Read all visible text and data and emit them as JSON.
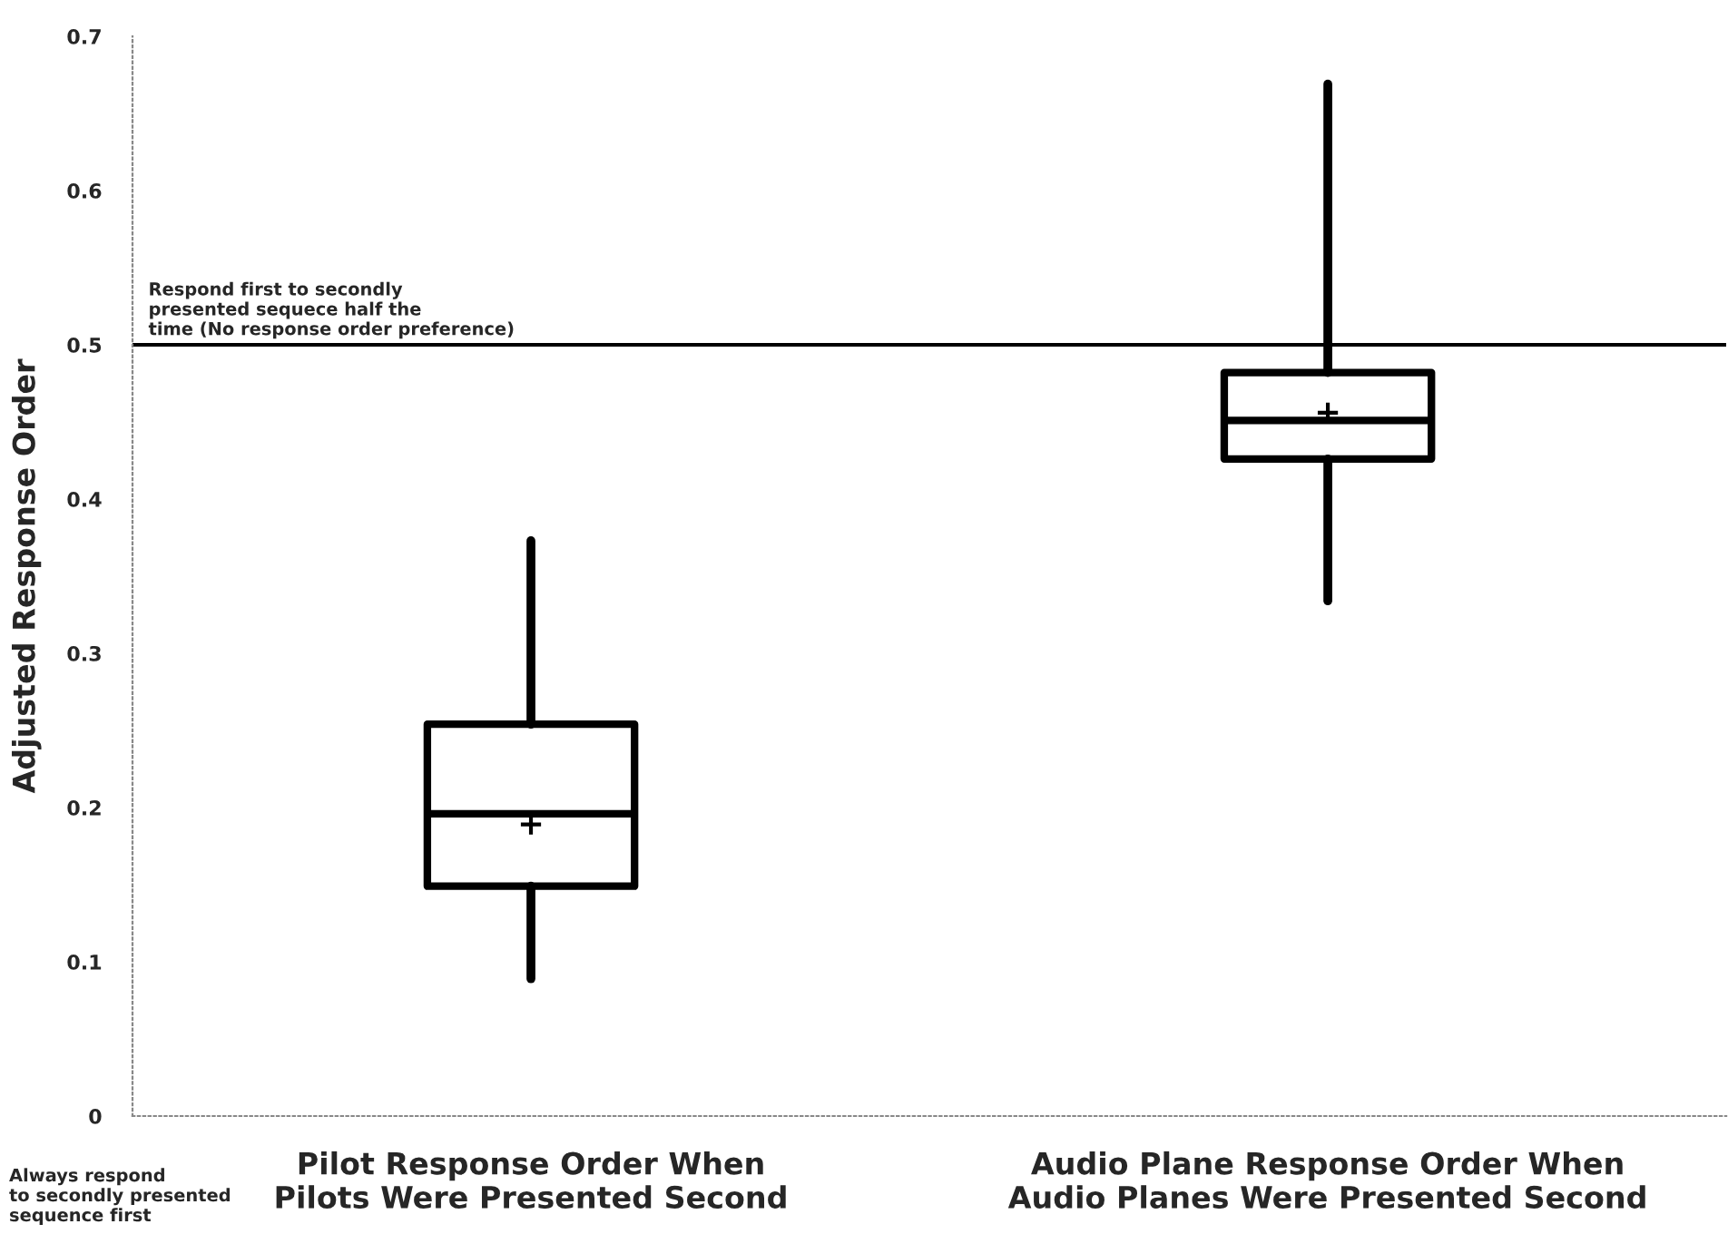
{
  "chart_data": {
    "type": "box",
    "ylabel": "Adjusted Response Order",
    "categories": [
      "Pilot Response Order When\nPilots Were Presented Second",
      "Audio Plane Response Order When\nAudio Planes Were Presented Second"
    ],
    "boxes": [
      {
        "low": 0.089,
        "q1": 0.149,
        "median": 0.196,
        "q3": 0.254,
        "high": 0.373,
        "mean": 0.189
      },
      {
        "low": 0.334,
        "q1": 0.426,
        "median": 0.451,
        "q3": 0.482,
        "high": 0.669,
        "mean": 0.456
      }
    ],
    "color": "#000000",
    "ylim": [
      0,
      0.7
    ],
    "yticks": [
      0,
      0.1,
      0.2,
      0.3,
      0.4,
      0.5,
      0.6,
      0.7
    ],
    "ref_lines": [
      {
        "axis": "y",
        "value": 0.5,
        "label": "Respond first to secondly\npresented sequece half the\ntime (No response order preference)",
        "color": "#000000"
      }
    ],
    "annotations": [
      "Always respond\nto secondly presented\nsequence first"
    ],
    "grid": false,
    "legend": false
  }
}
